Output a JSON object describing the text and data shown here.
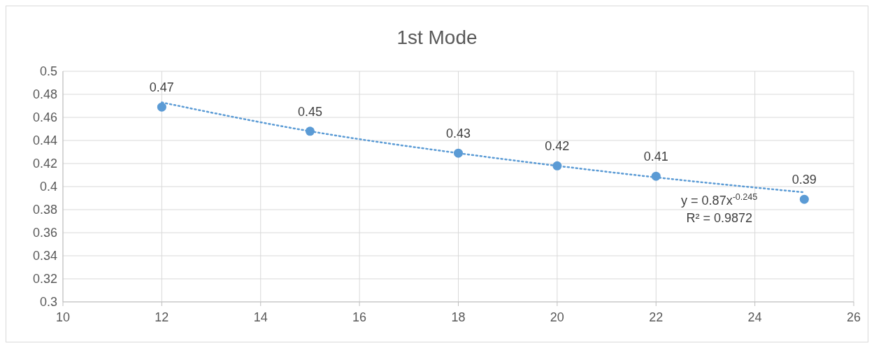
{
  "chart_data": {
    "type": "scatter",
    "title": "1st Mode",
    "xlim": [
      10,
      26
    ],
    "xticks": [
      10,
      12,
      14,
      16,
      18,
      20,
      22,
      24,
      26
    ],
    "ylim": [
      0.3,
      0.5
    ],
    "yticks": [
      0.3,
      0.32,
      0.34,
      0.36,
      0.38,
      0.4,
      0.42,
      0.44,
      0.46,
      0.48,
      0.5
    ],
    "grid": true,
    "series": [
      {
        "marker": "circle",
        "color": "#5b9bd5",
        "x": [
          12,
          15,
          18,
          20,
          22,
          25
        ],
        "values": [
          0.469,
          0.448,
          0.429,
          0.418,
          0.409,
          0.389
        ],
        "value_labels": [
          "0.47",
          "0.45",
          "0.43",
          "0.42",
          "0.41",
          "0.39"
        ]
      },
      {
        "type": "line",
        "color": "#5b9bd5",
        "line_style": "dotted",
        "x": [
          12,
          15,
          18,
          20,
          22,
          25
        ],
        "values": [
          0.473,
          0.448,
          0.429,
          0.418,
          0.408,
          0.395
        ]
      }
    ],
    "annotations": [
      "y = 0.87x$^{-0.245}$",
      "R² = 0.9872"
    ]
  }
}
